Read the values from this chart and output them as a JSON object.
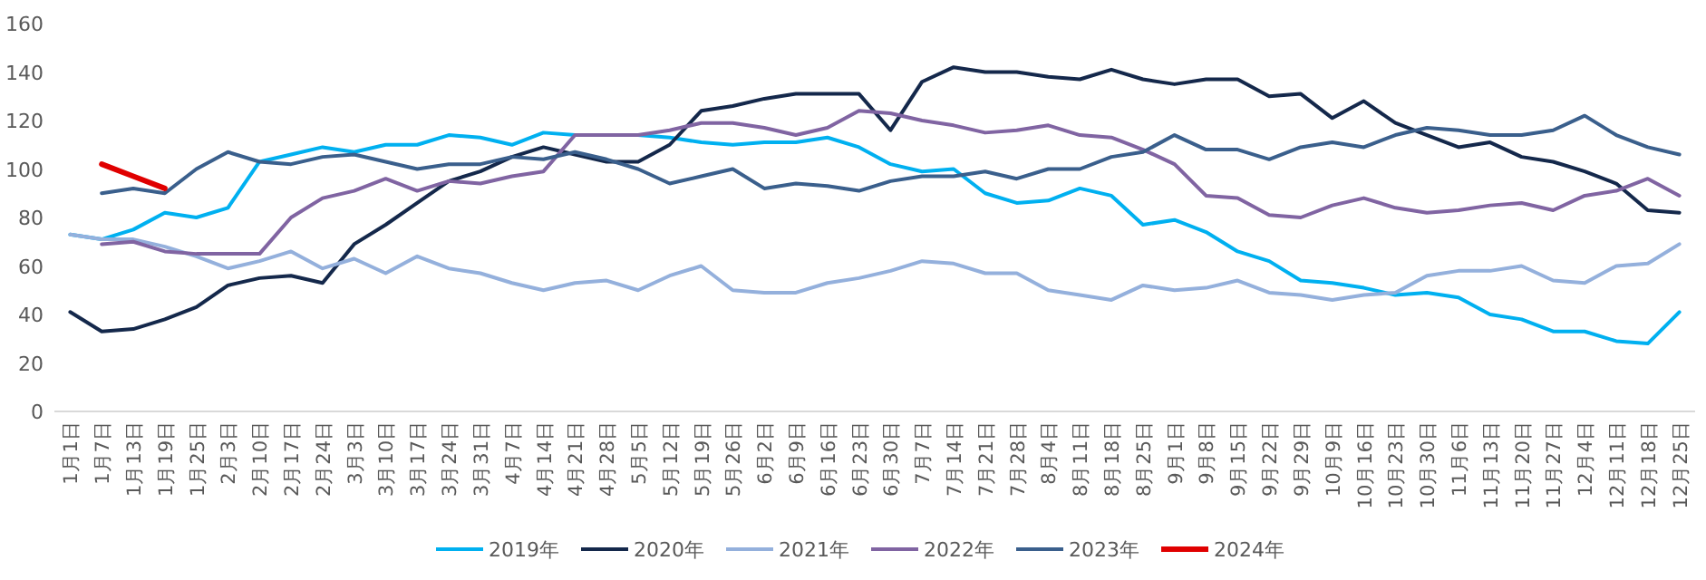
{
  "chart_data": {
    "type": "line",
    "categories": [
      "1月1日",
      "1月7日",
      "1月13日",
      "1月19日",
      "1月25日",
      "2月3日",
      "2月10日",
      "2月17日",
      "2月24日",
      "3月3日",
      "3月10日",
      "3月17日",
      "3月24日",
      "3月31日",
      "4月7日",
      "4月14日",
      "4月21日",
      "4月28日",
      "5月5日",
      "5月12日",
      "5月19日",
      "5月26日",
      "6月2日",
      "6月9日",
      "6月16日",
      "6月23日",
      "6月30日",
      "7月7日",
      "7月14日",
      "7月21日",
      "7月28日",
      "8月4日",
      "8月11日",
      "8月18日",
      "8月25日",
      "9月1日",
      "9月8日",
      "9月15日",
      "9月22日",
      "9月29日",
      "10月9日",
      "10月16日",
      "10月23日",
      "10月30日",
      "11月6日",
      "11月13日",
      "11月20日",
      "11月27日",
      "12月4日",
      "12月11日",
      "12月18日",
      "12月25日"
    ],
    "ylim": [
      0,
      160
    ],
    "yticks": [
      0,
      20,
      40,
      60,
      80,
      100,
      120,
      140,
      160
    ],
    "legend": "bottom",
    "series": [
      {
        "name": "2019年",
        "color": "#00b0f0",
        "values": [
          73,
          71,
          75,
          82,
          80,
          84,
          103,
          106,
          109,
          107,
          110,
          110,
          114,
          113,
          110,
          115,
          114,
          114,
          114,
          113,
          111,
          110,
          111,
          111,
          113,
          109,
          102,
          99,
          100,
          90,
          86,
          87,
          92,
          89,
          77,
          79,
          74,
          66,
          62,
          54,
          53,
          51,
          48,
          49,
          47,
          40,
          38,
          33,
          33,
          29,
          28,
          41
        ]
      },
      {
        "name": "2020年",
        "color": "#14284b",
        "values": [
          41,
          33,
          34,
          38,
          43,
          52,
          55,
          56,
          53,
          69,
          77,
          86,
          95,
          99,
          105,
          109,
          106,
          103,
          103,
          110,
          124,
          126,
          129,
          131,
          131,
          131,
          116,
          136,
          142,
          140,
          140,
          138,
          137,
          141,
          137,
          135,
          137,
          137,
          130,
          131,
          121,
          128,
          119,
          114,
          109,
          111,
          105,
          103,
          99,
          94,
          83,
          82
        ]
      },
      {
        "name": "2021年",
        "color": "#94b0dc",
        "values": [
          73,
          71,
          71,
          68,
          64,
          59,
          62,
          66,
          59,
          63,
          57,
          64,
          59,
          57,
          53,
          50,
          53,
          54,
          50,
          56,
          60,
          50,
          49,
          49,
          53,
          55,
          58,
          62,
          61,
          57,
          57,
          50,
          48,
          46,
          52,
          50,
          51,
          54,
          49,
          48,
          46,
          48,
          49,
          56,
          58,
          58,
          60,
          54,
          53,
          60,
          61,
          69
        ]
      },
      {
        "name": "2022年",
        "color": "#8064a2",
        "values": [
          null,
          69,
          70,
          66,
          65,
          65,
          65,
          80,
          88,
          91,
          96,
          91,
          95,
          94,
          97,
          99,
          114,
          114,
          114,
          116,
          119,
          119,
          117,
          114,
          117,
          124,
          123,
          120,
          118,
          115,
          116,
          118,
          114,
          113,
          108,
          102,
          89,
          88,
          81,
          80,
          85,
          88,
          84,
          82,
          83,
          85,
          86,
          83,
          89,
          91,
          96,
          89
        ]
      },
      {
        "name": "2023年",
        "color": "#3a5f8c",
        "values": [
          null,
          90,
          92,
          90,
          100,
          107,
          103,
          102,
          105,
          106,
          103,
          100,
          102,
          102,
          105,
          104,
          107,
          104,
          100,
          94,
          97,
          100,
          92,
          94,
          93,
          91,
          95,
          97,
          97,
          99,
          96,
          100,
          100,
          105,
          107,
          114,
          108,
          108,
          104,
          109,
          111,
          109,
          114,
          117,
          116,
          114,
          114,
          116,
          122,
          114,
          109,
          106
        ]
      },
      {
        "name": "2024年",
        "color": "#e00000",
        "values": [
          null,
          102,
          97,
          92,
          null,
          null,
          null,
          null,
          null,
          null,
          null,
          null,
          null,
          null,
          null,
          null,
          null,
          null,
          null,
          null,
          null,
          null,
          null,
          null,
          null,
          null,
          null,
          null,
          null,
          null,
          null,
          null,
          null,
          null,
          null,
          null,
          null,
          null,
          null,
          null,
          null,
          null,
          null,
          null,
          null,
          null,
          null,
          null,
          null,
          null,
          null,
          null
        ]
      }
    ]
  }
}
